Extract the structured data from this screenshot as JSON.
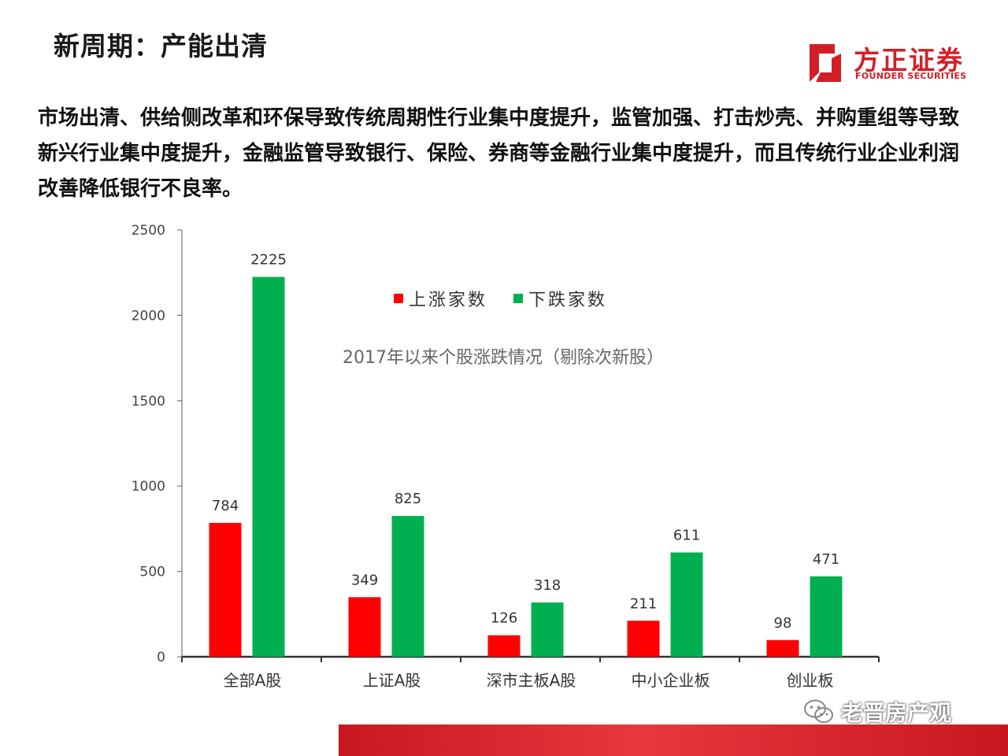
{
  "slide": {
    "title": "新周期：产能出清",
    "intro": "市场出清、供给侧改革和环保导致传统周期性行业集中度提升，监管加强、打击炒壳、并购重组等导致新兴行业集中度提升，金融监管导致银行、保险、券商等金融行业集中度提升，而且传统行业企业利润改善降低银行不良率。",
    "watermark": "老晋房产观",
    "watermark_icon": "wechat-icon"
  },
  "logo": {
    "cn": "方正证券",
    "en": "FOUNDER SECURITIES",
    "color": "#d21f26"
  },
  "chart_data": {
    "type": "bar",
    "title": "2017年以来个股涨跌情况（剔除次新股）",
    "categories": [
      "全部A股",
      "上证A股",
      "深市主板A股",
      "中小企业板",
      "创业板"
    ],
    "series": [
      {
        "name": "上涨家数",
        "color": "#ff0000",
        "values": [
          784,
          349,
          126,
          211,
          98
        ]
      },
      {
        "name": "下跌家数",
        "color": "#00b050",
        "values": [
          2225,
          825,
          318,
          611,
          471
        ]
      }
    ],
    "ylim": [
      0,
      2500
    ],
    "yticks": [
      0,
      500,
      1000,
      1500,
      2000,
      2500
    ],
    "xlabel": "",
    "ylabel": "",
    "grid": false,
    "legend": "top-center"
  }
}
